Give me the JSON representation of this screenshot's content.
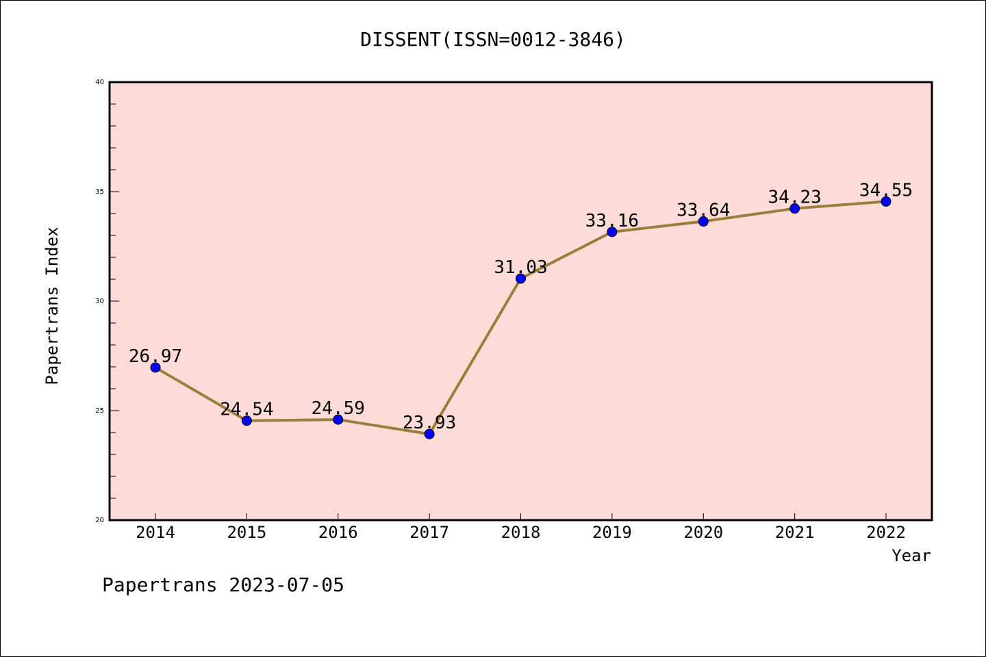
{
  "chart_data": {
    "type": "line",
    "title": "DISSENT(ISSN=0012-3846)",
    "xlabel": "Year",
    "ylabel": "Papertrans Index",
    "x": [
      "2014",
      "2015",
      "2016",
      "2017",
      "2018",
      "2019",
      "2020",
      "2021",
      "2022"
    ],
    "series": [
      {
        "values": [
          26.97,
          24.54,
          24.59,
          23.93,
          31.03,
          33.16,
          33.64,
          34.23,
          34.55
        ],
        "labels": [
          "26.97",
          "24.54",
          "24.59",
          "23.93",
          "31.03",
          "33.16",
          "33.64",
          "34.23",
          "34.55"
        ]
      }
    ],
    "ylim": [
      20,
      40
    ],
    "yticks": [
      "20",
      "25",
      "30",
      "35",
      "40"
    ],
    "grid": false,
    "colors": {
      "plot_background": "#fddbd8",
      "line": "#9a7f3a",
      "marker": "#0000ff"
    }
  },
  "footer": "Papertrans 2023-07-05"
}
